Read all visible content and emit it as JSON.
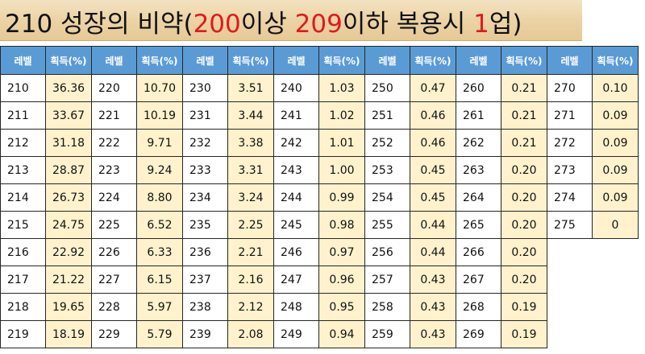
{
  "title": {
    "parts": [
      {
        "text": "210 성장의 비약(",
        "color": "normal"
      },
      {
        "text": "200",
        "color": "red"
      },
      {
        "text": "이상 ",
        "color": "normal"
      },
      {
        "text": "209",
        "color": "red"
      },
      {
        "text": "이하 복용시 ",
        "color": "normal"
      },
      {
        "text": "1",
        "color": "red"
      },
      {
        "text": "업)",
        "color": "normal"
      }
    ]
  },
  "colors": {
    "header_bg": "#5b9bd5",
    "rate_bg": "#fff2cc",
    "highlight_red": "#e0191e",
    "banner": "#ecd3a6"
  },
  "table": {
    "level_header": "레벨",
    "rate_header": "획득(%)",
    "groups": [
      {
        "rows": [
          [
            "210",
            "36.36"
          ],
          [
            "211",
            "33.67"
          ],
          [
            "212",
            "31.18"
          ],
          [
            "213",
            "28.87"
          ],
          [
            "214",
            "26.73"
          ],
          [
            "215",
            "24.75"
          ],
          [
            "216",
            "22.92"
          ],
          [
            "217",
            "21.22"
          ],
          [
            "218",
            "19.65"
          ],
          [
            "219",
            "18.19"
          ]
        ]
      },
      {
        "rows": [
          [
            "220",
            "10.70"
          ],
          [
            "221",
            "10.19"
          ],
          [
            "222",
            "9.71"
          ],
          [
            "223",
            "9.24"
          ],
          [
            "224",
            "8.80"
          ],
          [
            "225",
            "6.52"
          ],
          [
            "226",
            "6.33"
          ],
          [
            "227",
            "6.15"
          ],
          [
            "228",
            "5.97"
          ],
          [
            "229",
            "5.79"
          ]
        ]
      },
      {
        "rows": [
          [
            "230",
            "3.51"
          ],
          [
            "231",
            "3.44"
          ],
          [
            "232",
            "3.38"
          ],
          [
            "233",
            "3.31"
          ],
          [
            "234",
            "3.24"
          ],
          [
            "235",
            "2.25"
          ],
          [
            "236",
            "2.21"
          ],
          [
            "237",
            "2.16"
          ],
          [
            "238",
            "2.12"
          ],
          [
            "239",
            "2.08"
          ]
        ]
      },
      {
        "rows": [
          [
            "240",
            "1.03"
          ],
          [
            "241",
            "1.02"
          ],
          [
            "242",
            "1.01"
          ],
          [
            "243",
            "1.00"
          ],
          [
            "244",
            "0.99"
          ],
          [
            "245",
            "0.98"
          ],
          [
            "246",
            "0.97"
          ],
          [
            "247",
            "0.96"
          ],
          [
            "248",
            "0.95"
          ],
          [
            "249",
            "0.94"
          ]
        ]
      },
      {
        "rows": [
          [
            "250",
            "0.47"
          ],
          [
            "251",
            "0.46"
          ],
          [
            "252",
            "0.46"
          ],
          [
            "253",
            "0.45"
          ],
          [
            "254",
            "0.45"
          ],
          [
            "255",
            "0.44"
          ],
          [
            "256",
            "0.44"
          ],
          [
            "257",
            "0.43"
          ],
          [
            "258",
            "0.43"
          ],
          [
            "259",
            "0.43"
          ]
        ]
      },
      {
        "rows": [
          [
            "260",
            "0.21"
          ],
          [
            "261",
            "0.21"
          ],
          [
            "262",
            "0.21"
          ],
          [
            "263",
            "0.20"
          ],
          [
            "264",
            "0.20"
          ],
          [
            "265",
            "0.20"
          ],
          [
            "266",
            "0.20"
          ],
          [
            "267",
            "0.20"
          ],
          [
            "268",
            "0.19"
          ],
          [
            "269",
            "0.19"
          ]
        ]
      },
      {
        "rows": [
          [
            "270",
            "0.10"
          ],
          [
            "271",
            "0.09"
          ],
          [
            "272",
            "0.09"
          ],
          [
            "273",
            "0.09"
          ],
          [
            "274",
            "0.09"
          ],
          [
            "275",
            "0"
          ]
        ]
      }
    ]
  }
}
